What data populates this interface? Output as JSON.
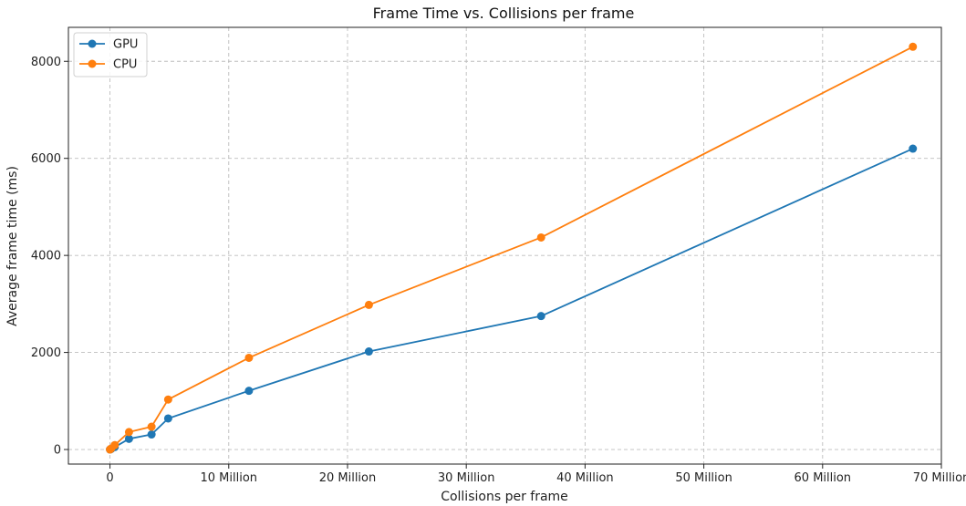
{
  "chart_data": {
    "type": "line",
    "title": "Frame Time vs. Collisions per frame",
    "xlabel": "Collisions per frame",
    "ylabel": "Average frame time (ms)",
    "xlim": [
      -3.5,
      70
    ],
    "ylim": [
      -300,
      8700
    ],
    "x_unit": "Million",
    "xticks": [
      0,
      10,
      20,
      30,
      40,
      50,
      60,
      70
    ],
    "xtick_labels": [
      "0",
      "10 Million",
      "20 Million",
      "30 Million",
      "40 Million",
      "50 Million",
      "60 Million",
      "70 Million"
    ],
    "yticks": [
      0,
      2000,
      4000,
      6000,
      8000
    ],
    "ytick_labels": [
      "0",
      "2000",
      "4000",
      "6000",
      "8000"
    ],
    "grid": true,
    "legend_position": "top-left",
    "series": [
      {
        "name": "GPU",
        "color": "#1f77b4",
        "x": [
          0,
          0.1,
          0.4,
          1.6,
          3.5,
          4.9,
          11.7,
          21.8,
          36.3,
          67.6
        ],
        "y": [
          0,
          10,
          50,
          220,
          310,
          640,
          1210,
          2020,
          2750,
          6200
        ]
      },
      {
        "name": "CPU",
        "color": "#ff7f0e",
        "x": [
          0,
          0.1,
          0.4,
          1.6,
          3.5,
          4.9,
          11.7,
          21.8,
          36.3,
          67.6
        ],
        "y": [
          0,
          20,
          90,
          360,
          470,
          1030,
          1890,
          2980,
          4370,
          8300
        ]
      }
    ]
  }
}
